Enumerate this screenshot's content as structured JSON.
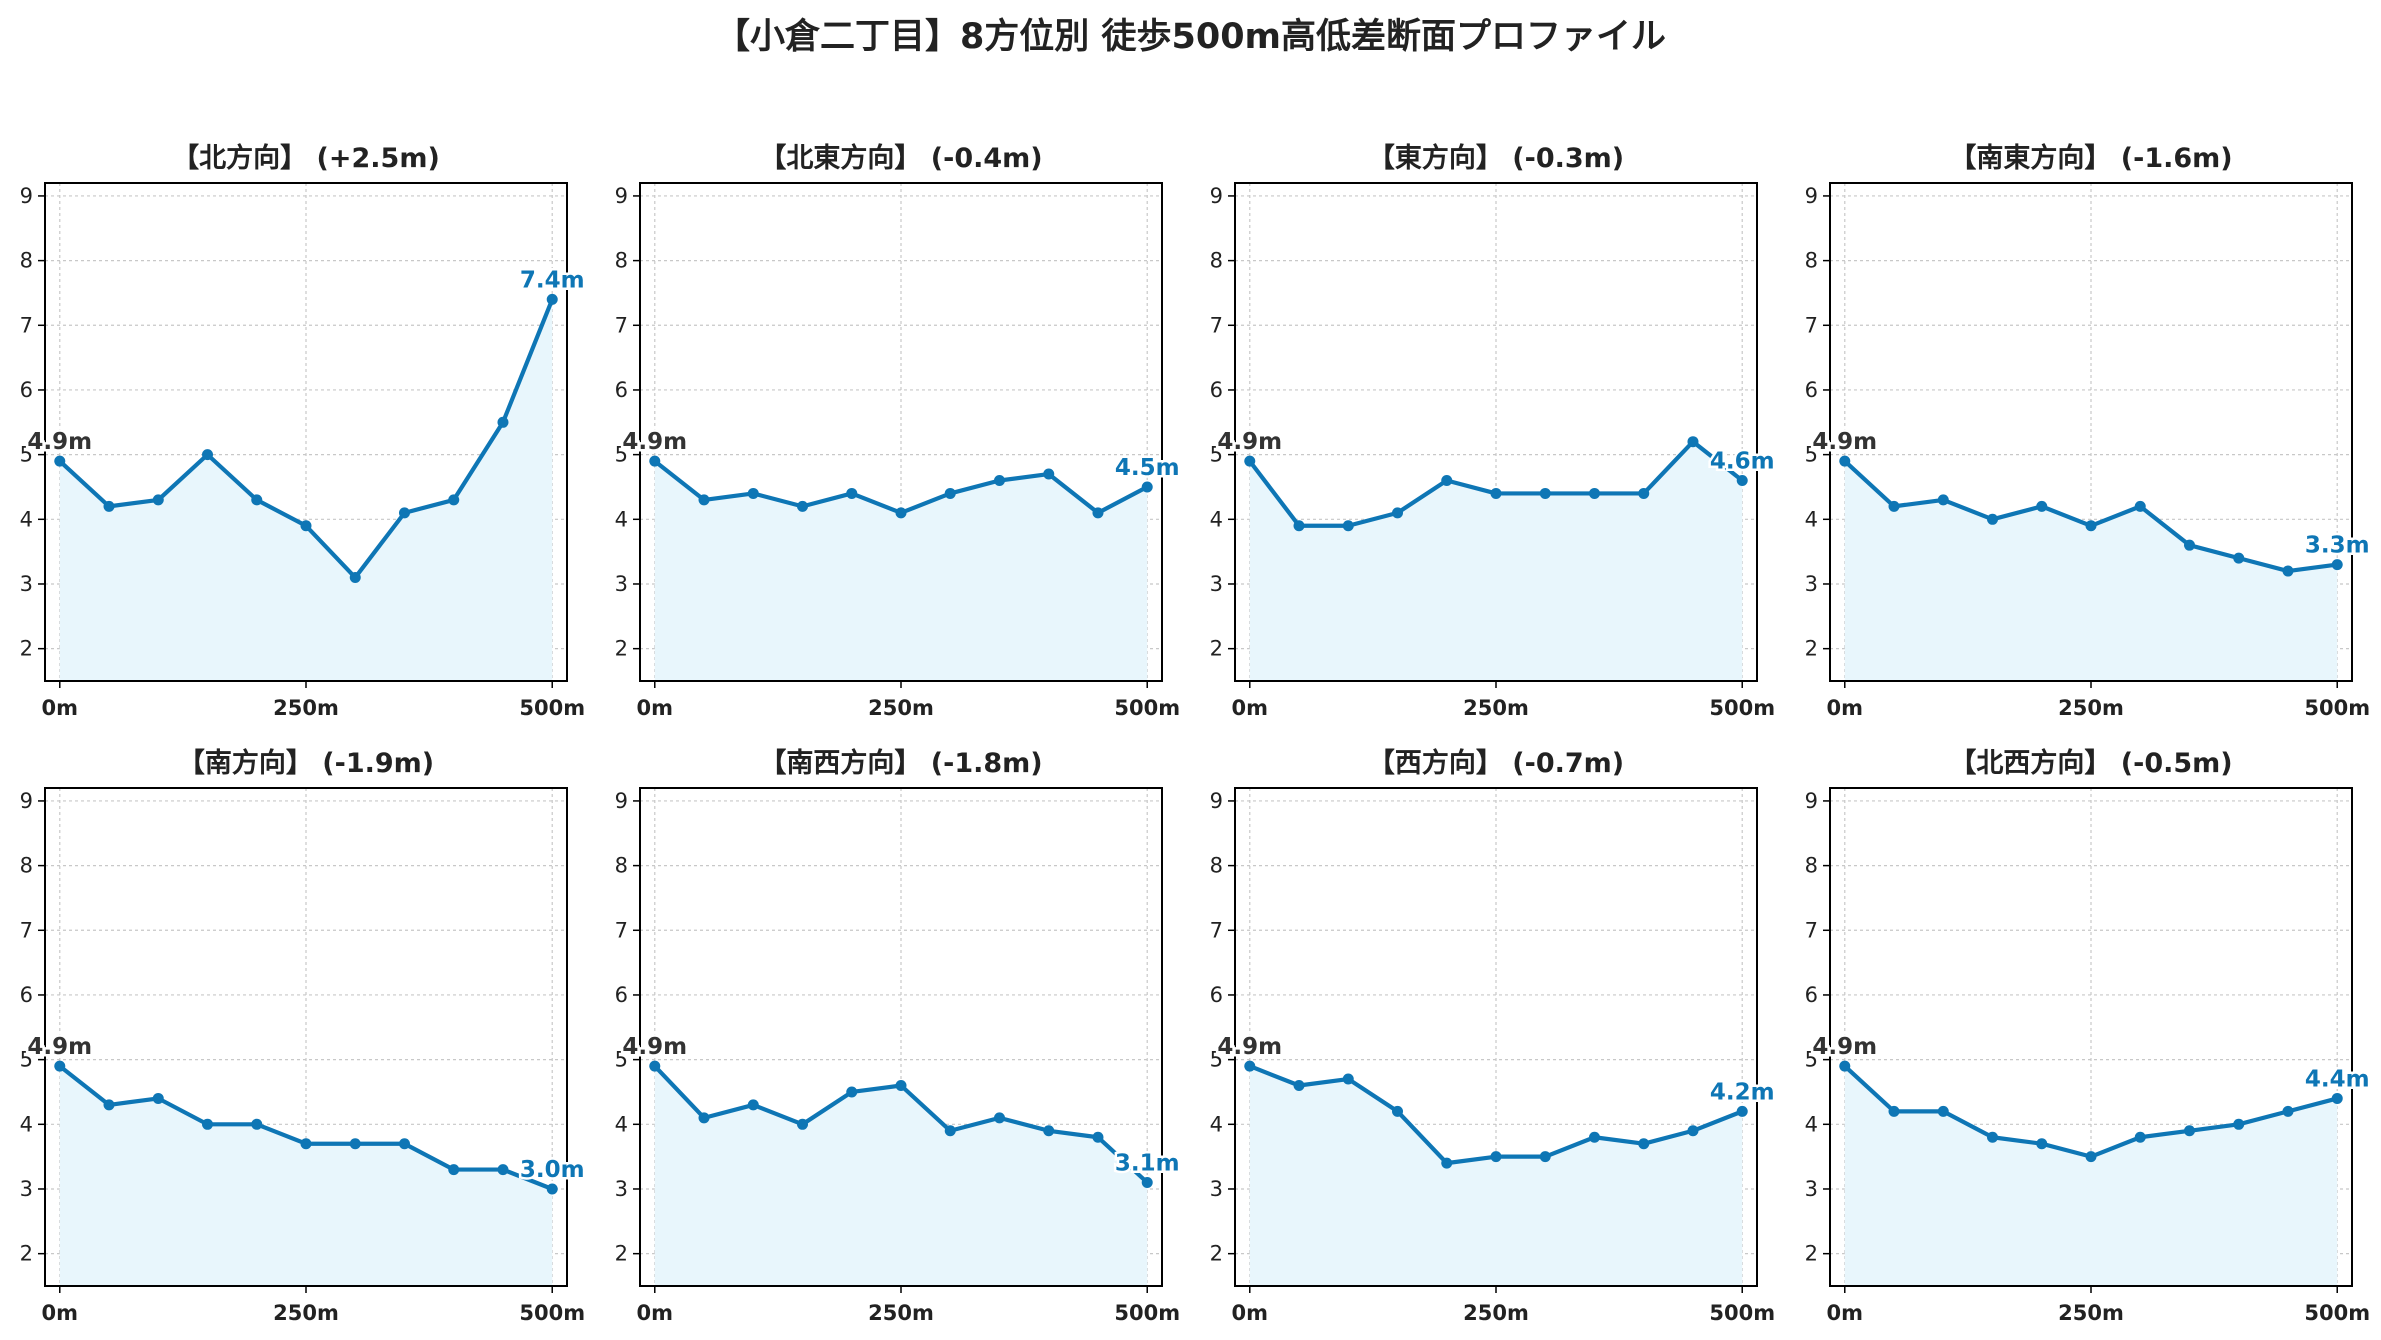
{
  "title": "【小倉二丁目】8方位別 徒歩500m高低差断面プロファイル",
  "colors": {
    "line": "#0e76b5",
    "fill": "#e8f6fc",
    "grid": "#c8c8c8",
    "start_label": "#333333",
    "end_label": "#0e76b5",
    "axis": "#000000"
  },
  "chart_data": [
    {
      "type": "area",
      "title": "【北方向】 (+2.5m)",
      "x": [
        0,
        50,
        100,
        150,
        200,
        250,
        300,
        350,
        400,
        450,
        500
      ],
      "y": [
        4.9,
        4.2,
        4.3,
        5.0,
        4.3,
        3.9,
        3.1,
        4.1,
        4.3,
        5.5,
        7.4
      ],
      "start_label": "4.9m",
      "end_label": "7.4m",
      "xticks": [
        "0m",
        "250m",
        "500m"
      ],
      "yticks": [
        "2",
        "3",
        "4",
        "5",
        "6",
        "7",
        "8",
        "9"
      ],
      "xlim": [
        -15,
        515
      ],
      "ylim": [
        1.5,
        9.2
      ],
      "grid": true
    },
    {
      "type": "area",
      "title": "【北東方向】 (-0.4m)",
      "x": [
        0,
        50,
        100,
        150,
        200,
        250,
        300,
        350,
        400,
        450,
        500
      ],
      "y": [
        4.9,
        4.3,
        4.4,
        4.2,
        4.4,
        4.1,
        4.4,
        4.6,
        4.7,
        4.1,
        4.5
      ],
      "start_label": "4.9m",
      "end_label": "4.5m",
      "xticks": [
        "0m",
        "250m",
        "500m"
      ],
      "yticks": [
        "2",
        "3",
        "4",
        "5",
        "6",
        "7",
        "8",
        "9"
      ],
      "xlim": [
        -15,
        515
      ],
      "ylim": [
        1.5,
        9.2
      ],
      "grid": true
    },
    {
      "type": "area",
      "title": "【東方向】 (-0.3m)",
      "x": [
        0,
        50,
        100,
        150,
        200,
        250,
        300,
        350,
        400,
        450,
        500
      ],
      "y": [
        4.9,
        3.9,
        3.9,
        4.1,
        4.6,
        4.4,
        4.4,
        4.4,
        4.4,
        5.2,
        4.6
      ],
      "start_label": "4.9m",
      "end_label": "4.6m",
      "xticks": [
        "0m",
        "250m",
        "500m"
      ],
      "yticks": [
        "2",
        "3",
        "4",
        "5",
        "6",
        "7",
        "8",
        "9"
      ],
      "xlim": [
        -15,
        515
      ],
      "ylim": [
        1.5,
        9.2
      ],
      "grid": true
    },
    {
      "type": "area",
      "title": "【南東方向】 (-1.6m)",
      "x": [
        0,
        50,
        100,
        150,
        200,
        250,
        300,
        350,
        400,
        450,
        500
      ],
      "y": [
        4.9,
        4.2,
        4.3,
        4.0,
        4.2,
        3.9,
        4.2,
        3.6,
        3.4,
        3.2,
        3.3
      ],
      "start_label": "4.9m",
      "end_label": "3.3m",
      "xticks": [
        "0m",
        "250m",
        "500m"
      ],
      "yticks": [
        "2",
        "3",
        "4",
        "5",
        "6",
        "7",
        "8",
        "9"
      ],
      "xlim": [
        -15,
        515
      ],
      "ylim": [
        1.5,
        9.2
      ],
      "grid": true
    },
    {
      "type": "area",
      "title": "【南方向】 (-1.9m)",
      "x": [
        0,
        50,
        100,
        150,
        200,
        250,
        300,
        350,
        400,
        450,
        500
      ],
      "y": [
        4.9,
        4.3,
        4.4,
        4.0,
        4.0,
        3.7,
        3.7,
        3.7,
        3.3,
        3.3,
        3.0
      ],
      "start_label": "4.9m",
      "end_label": "3.0m",
      "xticks": [
        "0m",
        "250m",
        "500m"
      ],
      "yticks": [
        "2",
        "3",
        "4",
        "5",
        "6",
        "7",
        "8",
        "9"
      ],
      "xlim": [
        -15,
        515
      ],
      "ylim": [
        1.5,
        9.2
      ],
      "grid": true
    },
    {
      "type": "area",
      "title": "【南西方向】 (-1.8m)",
      "x": [
        0,
        50,
        100,
        150,
        200,
        250,
        300,
        350,
        400,
        450,
        500
      ],
      "y": [
        4.9,
        4.1,
        4.3,
        4.0,
        4.5,
        4.6,
        3.9,
        4.1,
        3.9,
        3.8,
        3.1
      ],
      "start_label": "4.9m",
      "end_label": "3.1m",
      "xticks": [
        "0m",
        "250m",
        "500m"
      ],
      "yticks": [
        "2",
        "3",
        "4",
        "5",
        "6",
        "7",
        "8",
        "9"
      ],
      "xlim": [
        -15,
        515
      ],
      "ylim": [
        1.5,
        9.2
      ],
      "grid": true
    },
    {
      "type": "area",
      "title": "【西方向】 (-0.7m)",
      "x": [
        0,
        50,
        100,
        150,
        200,
        250,
        300,
        350,
        400,
        450,
        500
      ],
      "y": [
        4.9,
        4.6,
        4.7,
        4.2,
        3.4,
        3.5,
        3.5,
        3.8,
        3.7,
        3.9,
        4.2
      ],
      "start_label": "4.9m",
      "end_label": "4.2m",
      "xticks": [
        "0m",
        "250m",
        "500m"
      ],
      "yticks": [
        "2",
        "3",
        "4",
        "5",
        "6",
        "7",
        "8",
        "9"
      ],
      "xlim": [
        -15,
        515
      ],
      "ylim": [
        1.5,
        9.2
      ],
      "grid": true
    },
    {
      "type": "area",
      "title": "【北西方向】 (-0.5m)",
      "x": [
        0,
        50,
        100,
        150,
        200,
        250,
        300,
        350,
        400,
        450,
        500
      ],
      "y": [
        4.9,
        4.2,
        4.2,
        3.8,
        3.7,
        3.5,
        3.8,
        3.9,
        4.0,
        4.2,
        4.4
      ],
      "start_label": "4.9m",
      "end_label": "4.4m",
      "xticks": [
        "0m",
        "250m",
        "500m"
      ],
      "yticks": [
        "2",
        "3",
        "4",
        "5",
        "6",
        "7",
        "8",
        "9"
      ],
      "xlim": [
        -15,
        515
      ],
      "ylim": [
        1.5,
        9.2
      ],
      "grid": true
    }
  ]
}
